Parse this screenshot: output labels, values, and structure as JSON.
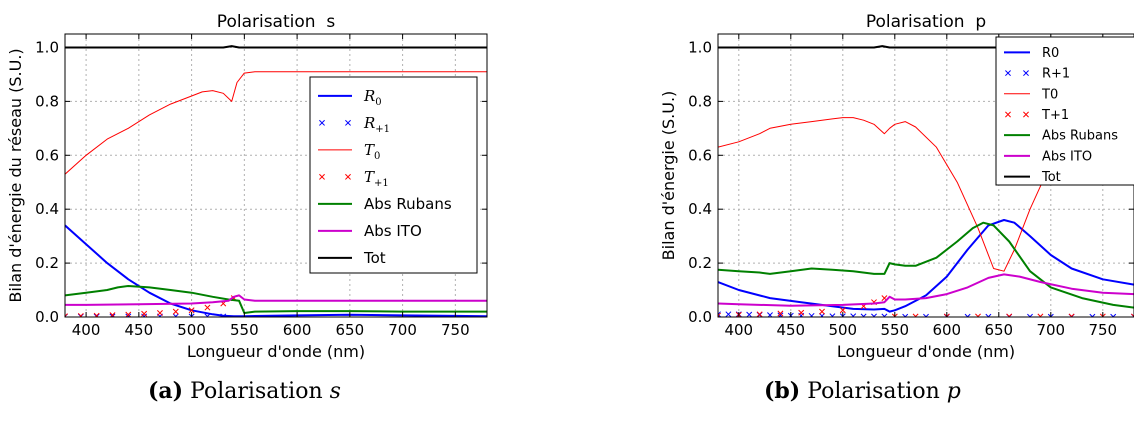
{
  "captions": [
    {
      "prefix": "(a)",
      "text": "Polarisation",
      "var": "s"
    },
    {
      "prefix": "(b)",
      "text": "Polarisation",
      "var": "p"
    }
  ],
  "chart_data": [
    {
      "type": "line",
      "title": "Polarisation  s",
      "xlabel": "Longueur d'onde (nm)",
      "ylabel": "Bilan d'énergie du réseau (S.U.)",
      "xlim": [
        380,
        780
      ],
      "ylim": [
        0,
        1.05
      ],
      "xticks": [
        "400",
        "450",
        "500",
        "550",
        "600",
        "650",
        "700",
        "750"
      ],
      "yticks": [
        "0.0",
        "0.2",
        "0.4",
        "0.6",
        "0.8",
        "1.0"
      ],
      "grid": true,
      "legend_position": "right",
      "series": [
        {
          "name": "R0",
          "sub": "0",
          "color": "#0000ff",
          "style": "line",
          "x": [
            380,
            400,
            420,
            440,
            460,
            480,
            500,
            520,
            530,
            540,
            550,
            600,
            650,
            700,
            750,
            780
          ],
          "y": [
            0.34,
            0.27,
            0.2,
            0.14,
            0.09,
            0.05,
            0.025,
            0.01,
            0.005,
            0.003,
            0.003,
            0.006,
            0.008,
            0.006,
            0.004,
            0.003
          ]
        },
        {
          "name": "R+1",
          "sub": "+1",
          "color": "#0000ff",
          "style": "marker",
          "x": [
            380,
            395,
            410,
            425,
            440,
            455,
            470,
            485,
            500,
            515,
            530
          ],
          "y": [
            0.002,
            0.002,
            0.002,
            0.002,
            0.002,
            0.002,
            0.002,
            0.002,
            0.002,
            0.002,
            0.002
          ]
        },
        {
          "name": "T0",
          "sub": "0",
          "color": "#ff0000",
          "style": "thin",
          "x": [
            380,
            400,
            420,
            440,
            460,
            480,
            500,
            510,
            520,
            530,
            538,
            543,
            550,
            560,
            600,
            650,
            700,
            750,
            780
          ],
          "y": [
            0.53,
            0.6,
            0.66,
            0.7,
            0.75,
            0.79,
            0.82,
            0.835,
            0.84,
            0.83,
            0.8,
            0.87,
            0.905,
            0.91,
            0.91,
            0.91,
            0.91,
            0.91,
            0.91
          ]
        },
        {
          "name": "T+1",
          "sub": "+1",
          "color": "#ff0000",
          "style": "marker",
          "x": [
            380,
            395,
            410,
            425,
            440,
            455,
            470,
            485,
            500,
            515,
            530,
            540
          ],
          "y": [
            0.003,
            0.004,
            0.005,
            0.007,
            0.009,
            0.012,
            0.015,
            0.02,
            0.025,
            0.035,
            0.05,
            0.07
          ]
        },
        {
          "name": "Abs Rubans",
          "color": "#008000",
          "style": "line",
          "x": [
            380,
            400,
            420,
            430,
            440,
            460,
            480,
            500,
            520,
            535,
            545,
            550,
            560,
            600,
            650,
            700,
            750,
            780
          ],
          "y": [
            0.08,
            0.09,
            0.1,
            0.11,
            0.115,
            0.11,
            0.1,
            0.09,
            0.075,
            0.065,
            0.06,
            0.015,
            0.02,
            0.022,
            0.022,
            0.02,
            0.02,
            0.02
          ]
        },
        {
          "name": "Abs ITO",
          "color": "#cc00cc",
          "style": "line",
          "x": [
            380,
            400,
            450,
            500,
            520,
            535,
            540,
            545,
            550,
            560,
            600,
            650,
            700,
            750,
            780
          ],
          "y": [
            0.045,
            0.045,
            0.047,
            0.05,
            0.055,
            0.06,
            0.075,
            0.08,
            0.065,
            0.06,
            0.06,
            0.06,
            0.06,
            0.06,
            0.06
          ]
        },
        {
          "name": "Tot",
          "color": "#000000",
          "style": "line",
          "x": [
            380,
            530,
            538,
            545,
            552,
            780
          ],
          "y": [
            1.0,
            1.0,
            1.005,
            1.0,
            1.0,
            1.0
          ]
        }
      ]
    },
    {
      "type": "line",
      "title": "Polarisation  p",
      "xlabel": "Longueur d'onde (nm)",
      "ylabel": "Bilan d'énergie (S.U.)",
      "xlim": [
        380,
        780
      ],
      "ylim": [
        0,
        1.05
      ],
      "xticks": [
        "400",
        "450",
        "500",
        "550",
        "600",
        "650",
        "700",
        "750"
      ],
      "yticks": [
        "0.0",
        "0.2",
        "0.4",
        "0.6",
        "0.8",
        "1.0"
      ],
      "grid": true,
      "legend_position": "top-right",
      "series": [
        {
          "name": "R0",
          "color": "#0000ff",
          "style": "line",
          "x": [
            380,
            400,
            430,
            460,
            490,
            510,
            530,
            540,
            545,
            550,
            560,
            580,
            600,
            620,
            640,
            655,
            665,
            680,
            700,
            720,
            750,
            780
          ],
          "y": [
            0.13,
            0.1,
            0.07,
            0.055,
            0.04,
            0.03,
            0.028,
            0.03,
            0.02,
            0.025,
            0.04,
            0.08,
            0.15,
            0.25,
            0.34,
            0.36,
            0.35,
            0.3,
            0.23,
            0.18,
            0.14,
            0.12
          ]
        },
        {
          "name": "R+1",
          "color": "#0000ff",
          "style": "marker",
          "x": [
            380,
            390,
            400,
            410,
            420,
            430,
            440,
            450,
            460,
            470,
            480,
            490,
            500,
            510,
            520,
            530,
            540,
            560,
            580,
            600,
            620,
            640,
            660,
            680,
            700,
            720,
            740,
            760,
            780
          ],
          "y": [
            0.01,
            0.01,
            0.01,
            0.009,
            0.008,
            0.007,
            0.006,
            0.005,
            0.005,
            0.004,
            0.004,
            0.003,
            0.003,
            0.003,
            0.002,
            0.002,
            0.002,
            0.001,
            0.001,
            0.001,
            0.001,
            0.001,
            0.001,
            0.001,
            0.001,
            0.001,
            0.001,
            0.001,
            0.001
          ]
        },
        {
          "name": "T0",
          "color": "#ff0000",
          "style": "thin",
          "x": [
            380,
            400,
            420,
            430,
            450,
            470,
            490,
            500,
            510,
            520,
            530,
            540,
            545,
            550,
            560,
            570,
            590,
            610,
            630,
            645,
            655,
            665,
            680,
            700,
            720,
            740,
            760,
            780
          ],
          "y": [
            0.63,
            0.65,
            0.68,
            0.7,
            0.715,
            0.725,
            0.735,
            0.74,
            0.74,
            0.73,
            0.715,
            0.68,
            0.7,
            0.715,
            0.725,
            0.705,
            0.63,
            0.5,
            0.33,
            0.18,
            0.17,
            0.25,
            0.4,
            0.57,
            0.68,
            0.74,
            0.76,
            0.77
          ]
        },
        {
          "name": "T+1",
          "color": "#ff0000",
          "style": "marker",
          "x": [
            380,
            400,
            420,
            440,
            460,
            480,
            500,
            520,
            530,
            540,
            550,
            570,
            600,
            630,
            660,
            690,
            720,
            750,
            780
          ],
          "y": [
            0.005,
            0.008,
            0.01,
            0.013,
            0.016,
            0.02,
            0.025,
            0.04,
            0.055,
            0.07,
            0.002,
            0.002,
            0.002,
            0.002,
            0.002,
            0.002,
            0.002,
            0.002,
            0.002
          ]
        },
        {
          "name": "Abs Rubans",
          "color": "#008000",
          "style": "line",
          "x": [
            380,
            400,
            420,
            430,
            450,
            470,
            490,
            510,
            530,
            540,
            545,
            550,
            560,
            570,
            590,
            610,
            625,
            635,
            645,
            660,
            680,
            700,
            730,
            760,
            780
          ],
          "y": [
            0.175,
            0.17,
            0.165,
            0.16,
            0.17,
            0.18,
            0.175,
            0.17,
            0.16,
            0.16,
            0.2,
            0.195,
            0.19,
            0.19,
            0.22,
            0.28,
            0.33,
            0.35,
            0.34,
            0.28,
            0.17,
            0.11,
            0.07,
            0.045,
            0.035
          ]
        },
        {
          "name": "Abs ITO",
          "color": "#cc00cc",
          "style": "line",
          "x": [
            380,
            400,
            450,
            500,
            530,
            540,
            545,
            550,
            560,
            580,
            600,
            620,
            640,
            655,
            670,
            690,
            720,
            750,
            780
          ],
          "y": [
            0.05,
            0.047,
            0.042,
            0.045,
            0.05,
            0.055,
            0.075,
            0.065,
            0.065,
            0.07,
            0.085,
            0.11,
            0.145,
            0.158,
            0.15,
            0.13,
            0.105,
            0.09,
            0.085
          ]
        },
        {
          "name": "Tot",
          "color": "#000000",
          "style": "line",
          "x": [
            380,
            530,
            538,
            545,
            552,
            780
          ],
          "y": [
            1.0,
            1.0,
            1.005,
            1.0,
            1.0,
            1.0
          ]
        }
      ]
    }
  ]
}
